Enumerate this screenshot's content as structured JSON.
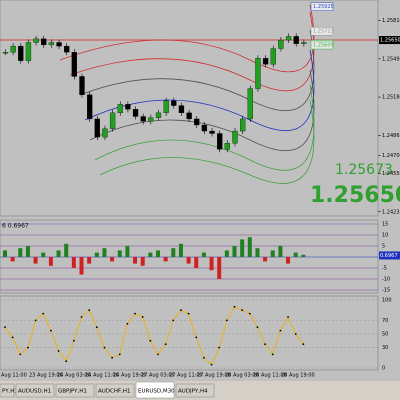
{
  "main_chart": {
    "ylim": [
      1.242,
      1.2598
    ],
    "price_ticks": [
      {
        "value": 1.2581,
        "label": "1.25810"
      },
      {
        "value": 1.25495,
        "label": "1.25495"
      },
      {
        "value": 1.2518,
        "label": "1.25180"
      },
      {
        "value": 1.24865,
        "label": "1.24865"
      },
      {
        "value": 1.247,
        "label": "1.24700"
      },
      {
        "value": 1.2455,
        "label": "1.24550"
      },
      {
        "value": 1.24235,
        "label": "1.24235"
      }
    ],
    "level_labels": [
      {
        "value": 1.25925,
        "label": "1.25925",
        "color": "#3050d0"
      },
      {
        "value": 1.25723,
        "label": "1.25723",
        "color": "#909090"
      },
      {
        "value": 1.25617,
        "label": "1.25617",
        "color": "#40b040"
      },
      {
        "value": 1.25609,
        "label": "1.25609",
        "color": "#40b040"
      }
    ],
    "current_price": {
      "value": 1.2565,
      "label": "1.25650"
    },
    "bid": "1.25673",
    "ask": "1.25650",
    "closes": [
      1.2555,
      1.256,
      1.2548,
      1.2563,
      1.2566,
      1.2561,
      1.2563,
      1.256,
      1.2555,
      1.2535,
      1.252,
      1.25,
      1.2485,
      1.2492,
      1.2505,
      1.2512,
      1.2508,
      1.2502,
      1.2498,
      1.2501,
      1.2505,
      1.2515,
      1.2511,
      1.2505,
      1.25,
      1.2495,
      1.249,
      1.2488,
      1.2475,
      1.248,
      1.249,
      1.25,
      1.2525,
      1.255,
      1.2545,
      1.2558,
      1.2565,
      1.2568,
      1.2562,
      1.2563
    ]
  },
  "oscillator": {
    "label": "6  0.6967",
    "ylim": [
      -15,
      15
    ],
    "ticks": [
      15,
      10,
      5,
      0,
      -5,
      -10,
      -15
    ],
    "current": {
      "value": 0.6967,
      "label": "0.6967"
    },
    "values": [
      3,
      -2,
      4,
      5,
      -3,
      2,
      -4,
      3,
      6,
      -5,
      -8,
      -3,
      2,
      4,
      -2,
      3,
      5,
      -3,
      -4,
      2,
      3,
      -2,
      4,
      6,
      -3,
      -5,
      2,
      -6,
      -10,
      3,
      5,
      8,
      9,
      4,
      -2,
      3,
      5,
      -3,
      2,
      1
    ]
  },
  "stochastic": {
    "ylim": [
      0,
      100
    ],
    "ticks": [
      100,
      70,
      50,
      30,
      0
    ],
    "values": [
      60,
      45,
      20,
      30,
      70,
      80,
      55,
      25,
      10,
      40,
      75,
      85,
      60,
      30,
      15,
      20,
      65,
      80,
      75,
      40,
      20,
      35,
      70,
      85,
      80,
      45,
      15,
      5,
      30,
      70,
      90,
      85,
      80,
      60,
      35,
      20,
      55,
      75,
      50,
      35
    ]
  },
  "time_labels": [
    "Aug 11:00",
    "23 Aug 19:00",
    "24 Aug 03:00",
    "24 Aug 11:00",
    "24 Aug 19:00",
    "27 Aug 03:00",
    "27 Aug 11:00",
    "27 Aug 19:00",
    "28 Aug 03:00",
    "28 Aug 11:00",
    "28 Aug 19:00"
  ],
  "tabs": [
    "PY,H1",
    "AUDUSD,H1",
    "GBPJPY,H1",
    "AUDCHF,H1",
    "EURUSD,M30",
    "AUDJPY,H4"
  ],
  "active_tab": 4
}
